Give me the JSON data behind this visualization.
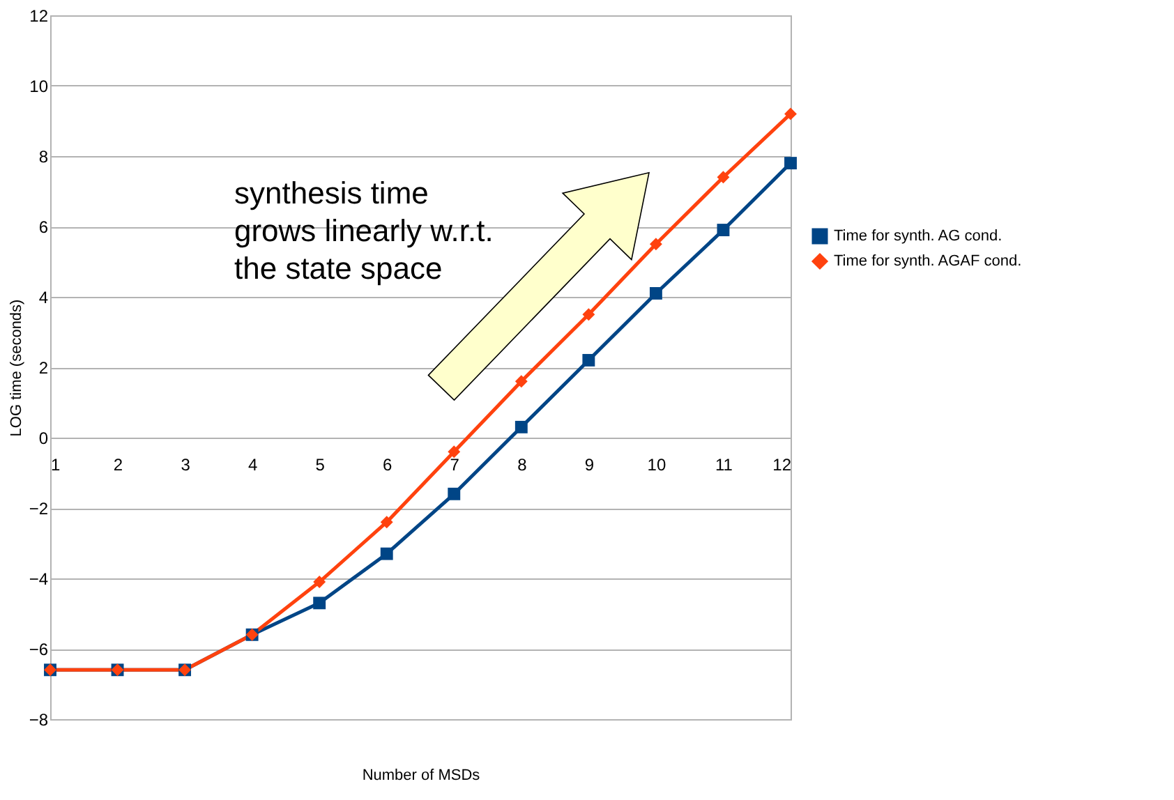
{
  "chart_data": {
    "type": "line",
    "xlabel": "Number of MSDs",
    "ylabel": "LOG time (seconds)",
    "x": [
      1,
      2,
      3,
      4,
      5,
      6,
      7,
      8,
      9,
      10,
      11,
      12
    ],
    "series": [
      {
        "name": "Time for synth. AG cond.",
        "color": "#004586",
        "marker": "square",
        "values": [
          -6.6,
          -6.6,
          -6.6,
          -5.6,
          -4.7,
          -3.3,
          -1.6,
          0.3,
          2.2,
          4.1,
          5.9,
          7.8
        ]
      },
      {
        "name": "Time for synth. AGAF cond.",
        "color": "#ff420e",
        "marker": "diamond",
        "values": [
          -6.6,
          -6.6,
          -6.6,
          -5.6,
          -4.1,
          -2.4,
          -0.4,
          1.6,
          3.5,
          5.5,
          7.4,
          9.2
        ]
      }
    ],
    "xlim": [
      1,
      12
    ],
    "xticks": [
      1,
      2,
      3,
      4,
      5,
      6,
      7,
      8,
      9,
      10,
      11,
      12
    ],
    "ylim": [
      -8,
      12
    ],
    "yticks": [
      -8,
      -6,
      -4,
      -2,
      0,
      2,
      4,
      6,
      8,
      10,
      12
    ],
    "grid": "y",
    "legend": "right",
    "line_style": "solid",
    "annotations": [
      "synthesis time\ngrows linearly w.r.t.\nthe state space"
    ]
  }
}
